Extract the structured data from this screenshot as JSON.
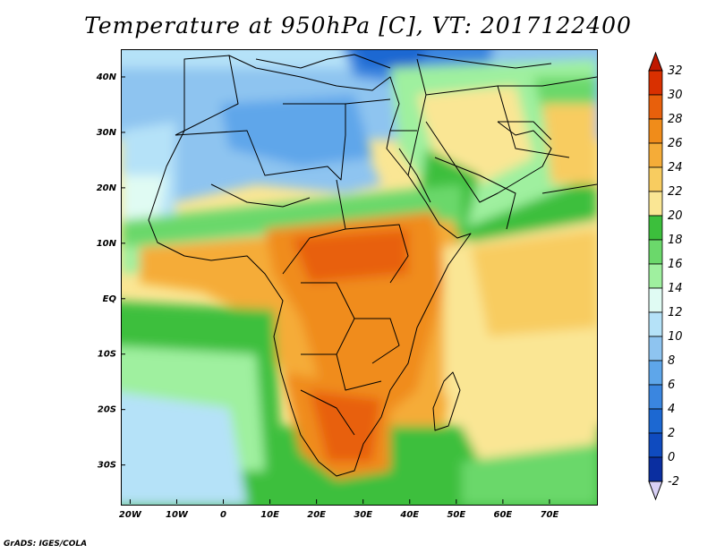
{
  "title": "Temperature at 950hPa [C], VT: 2017122400",
  "credit": "GrADS: IGES/COLA",
  "map": {
    "lon_range": [
      -22,
      80
    ],
    "lat_range": [
      -37,
      45
    ],
    "y_axis_labels": [
      "40N",
      "30N",
      "20N",
      "10N",
      "EQ",
      "10S",
      "20S",
      "30S"
    ],
    "y_axis_values": [
      40,
      30,
      20,
      10,
      0,
      -10,
      -20,
      -30
    ],
    "x_axis_labels": [
      "20W",
      "10W",
      "0",
      "10E",
      "20E",
      "30E",
      "40E",
      "50E",
      "60E",
      "70E"
    ],
    "x_axis_values": [
      -20,
      -10,
      0,
      10,
      20,
      30,
      40,
      50,
      60,
      70
    ]
  },
  "colorbar": {
    "labels": [
      "32",
      "30",
      "28",
      "26",
      "24",
      "22",
      "20",
      "18",
      "16",
      "14",
      "12",
      "10",
      "8",
      "6",
      "4",
      "2",
      "0",
      "-2"
    ],
    "colors": [
      "#d93000",
      "#e8600c",
      "#f08c1a",
      "#f5ac38",
      "#f8cc60",
      "#fae694",
      "#3cbf3c",
      "#6bd86b",
      "#9ff09f",
      "#e0fbf3",
      "#b5e2f8",
      "#8ec4f0",
      "#5ea6ea",
      "#3a86e0",
      "#1c68d2",
      "#0f4bbf",
      "#0a2ea0"
    ],
    "low_color": "#d8d0f5",
    "high_color": "#c01800"
  }
}
